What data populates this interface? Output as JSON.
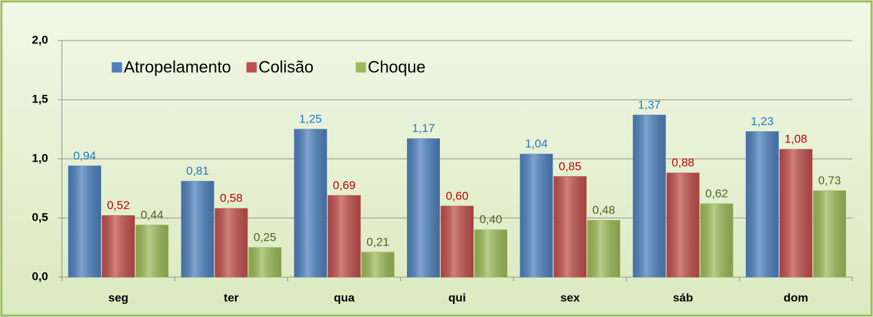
{
  "chart_data": {
    "type": "bar",
    "categories": [
      "seg",
      "ter",
      "qua",
      "qui",
      "sex",
      "sáb",
      "dom"
    ],
    "series": [
      {
        "name": "Atropelamento",
        "color": "#4f81bd",
        "label_color": "#1f78c8",
        "values": [
          0.94,
          0.81,
          1.25,
          1.17,
          1.04,
          1.37,
          1.23
        ],
        "value_labels": [
          "0,94",
          "0,81",
          "1,25",
          "1,17",
          "1,04",
          "1,37",
          "1,23"
        ]
      },
      {
        "name": "Colisão",
        "color": "#c0504d",
        "label_color": "#c00000",
        "values": [
          0.52,
          0.58,
          0.69,
          0.6,
          0.85,
          0.88,
          1.08
        ],
        "value_labels": [
          "0,52",
          "0,58",
          "0,69",
          "0,60",
          "0,85",
          "0,88",
          "1,08"
        ]
      },
      {
        "name": "Choque",
        "color": "#9bbb59",
        "label_color": "#4f6228",
        "values": [
          0.44,
          0.25,
          0.21,
          0.4,
          0.48,
          0.62,
          0.73
        ],
        "value_labels": [
          "0,44",
          "0,25",
          "0,21",
          "0,40",
          "0,48",
          "0,62",
          "0,73"
        ]
      }
    ],
    "ylim": [
      0,
      2
    ],
    "yticks": [
      {
        "value": 0,
        "label": "0,0"
      },
      {
        "value": 0.5,
        "label": "0,5"
      },
      {
        "value": 1,
        "label": "1,0"
      },
      {
        "value": 1.5,
        "label": "1,5"
      },
      {
        "value": 2,
        "label": "2,0"
      }
    ],
    "grid": true,
    "legend": "upper left"
  }
}
